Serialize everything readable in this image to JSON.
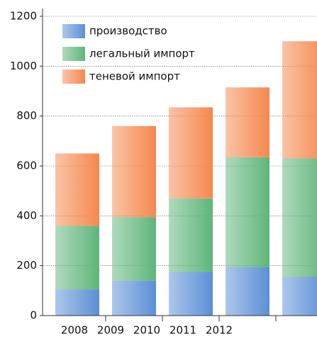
{
  "chart_data": {
    "type": "stacked_bar",
    "categories": [
      "2008",
      "2009",
      "2010",
      "2011",
      "2012"
    ],
    "series": [
      {
        "name": "производство",
        "color": "#5b8fd6",
        "values": [
          105,
          140,
          175,
          195,
          155
        ]
      },
      {
        "name": "легальный импорт",
        "color": "#5fb57a",
        "values": [
          255,
          255,
          295,
          440,
          475
        ]
      },
      {
        "name": "теневой импорт",
        "color": "#f5884e",
        "values": [
          290,
          365,
          365,
          280,
          470
        ]
      }
    ],
    "ylim": [
      0,
      1200
    ],
    "yticks": [
      0,
      200,
      400,
      600,
      800,
      1000,
      1200
    ],
    "grid": true
  }
}
